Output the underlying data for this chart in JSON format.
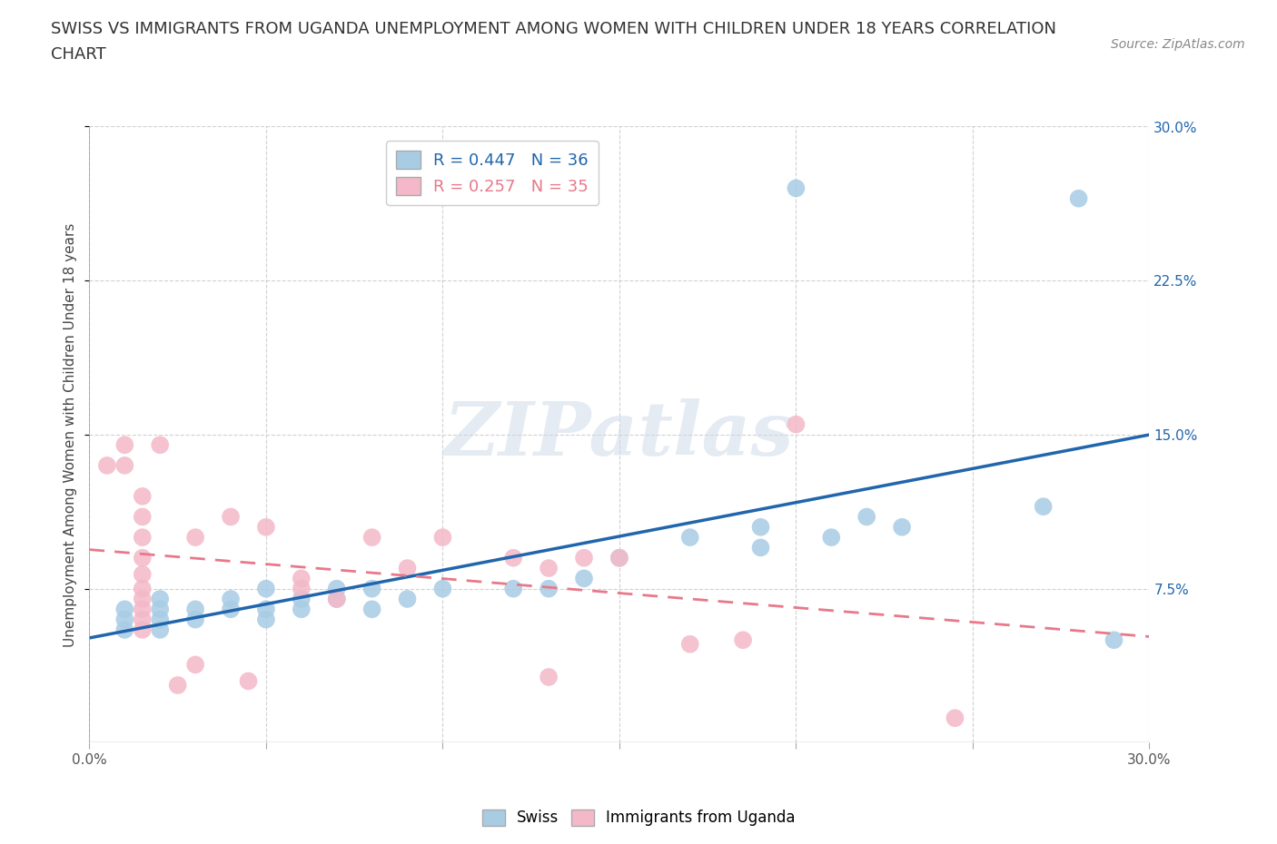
{
  "title_line1": "SWISS VS IMMIGRANTS FROM UGANDA UNEMPLOYMENT AMONG WOMEN WITH CHILDREN UNDER 18 YEARS CORRELATION",
  "title_line2": "CHART",
  "source": "Source: ZipAtlas.com",
  "ylabel": "Unemployment Among Women with Children Under 18 years",
  "xlim": [
    0.0,
    0.3
  ],
  "ylim": [
    0.0,
    0.3
  ],
  "yticks": [
    0.075,
    0.15,
    0.225,
    0.3
  ],
  "xticks": [
    0.0,
    0.05,
    0.1,
    0.15,
    0.2,
    0.25,
    0.3
  ],
  "ytick_labels_right": [
    "7.5%",
    "15.0%",
    "22.5%",
    "30.0%"
  ],
  "watermark": "ZIPatlas",
  "swiss_color": "#a8cce4",
  "uganda_color": "#f4b8c8",
  "swiss_line_color": "#2166ac",
  "uganda_line_color": "#e8788a",
  "swiss_R": 0.447,
  "swiss_N": 36,
  "uganda_R": 0.257,
  "uganda_N": 35,
  "swiss_points": [
    [
      0.01,
      0.055
    ],
    [
      0.01,
      0.06
    ],
    [
      0.01,
      0.065
    ],
    [
      0.02,
      0.055
    ],
    [
      0.02,
      0.06
    ],
    [
      0.02,
      0.065
    ],
    [
      0.02,
      0.07
    ],
    [
      0.03,
      0.06
    ],
    [
      0.03,
      0.065
    ],
    [
      0.04,
      0.065
    ],
    [
      0.04,
      0.07
    ],
    [
      0.05,
      0.06
    ],
    [
      0.05,
      0.065
    ],
    [
      0.05,
      0.075
    ],
    [
      0.06,
      0.065
    ],
    [
      0.06,
      0.07
    ],
    [
      0.07,
      0.07
    ],
    [
      0.07,
      0.075
    ],
    [
      0.08,
      0.065
    ],
    [
      0.08,
      0.075
    ],
    [
      0.09,
      0.07
    ],
    [
      0.1,
      0.075
    ],
    [
      0.12,
      0.075
    ],
    [
      0.13,
      0.075
    ],
    [
      0.14,
      0.08
    ],
    [
      0.15,
      0.09
    ],
    [
      0.17,
      0.1
    ],
    [
      0.19,
      0.095
    ],
    [
      0.19,
      0.105
    ],
    [
      0.2,
      0.27
    ],
    [
      0.21,
      0.1
    ],
    [
      0.22,
      0.11
    ],
    [
      0.23,
      0.105
    ],
    [
      0.27,
      0.115
    ],
    [
      0.28,
      0.265
    ],
    [
      0.29,
      0.05
    ]
  ],
  "uganda_points": [
    [
      0.005,
      0.135
    ],
    [
      0.01,
      0.135
    ],
    [
      0.01,
      0.145
    ],
    [
      0.015,
      0.12
    ],
    [
      0.015,
      0.11
    ],
    [
      0.015,
      0.1
    ],
    [
      0.015,
      0.09
    ],
    [
      0.015,
      0.082
    ],
    [
      0.015,
      0.075
    ],
    [
      0.015,
      0.07
    ],
    [
      0.015,
      0.065
    ],
    [
      0.015,
      0.06
    ],
    [
      0.015,
      0.055
    ],
    [
      0.02,
      0.145
    ],
    [
      0.03,
      0.1
    ],
    [
      0.04,
      0.11
    ],
    [
      0.05,
      0.105
    ],
    [
      0.06,
      0.08
    ],
    [
      0.06,
      0.075
    ],
    [
      0.07,
      0.07
    ],
    [
      0.08,
      0.1
    ],
    [
      0.09,
      0.085
    ],
    [
      0.1,
      0.1
    ],
    [
      0.12,
      0.09
    ],
    [
      0.13,
      0.085
    ],
    [
      0.14,
      0.09
    ],
    [
      0.15,
      0.09
    ],
    [
      0.17,
      0.048
    ],
    [
      0.185,
      0.05
    ],
    [
      0.2,
      0.155
    ],
    [
      0.03,
      0.038
    ],
    [
      0.045,
      0.03
    ],
    [
      0.13,
      0.032
    ],
    [
      0.245,
      0.012
    ],
    [
      0.025,
      0.028
    ]
  ],
  "background_color": "#ffffff",
  "grid_color": "#cccccc",
  "title_fontsize": 13,
  "label_fontsize": 11,
  "tick_fontsize": 11,
  "source_fontsize": 10
}
